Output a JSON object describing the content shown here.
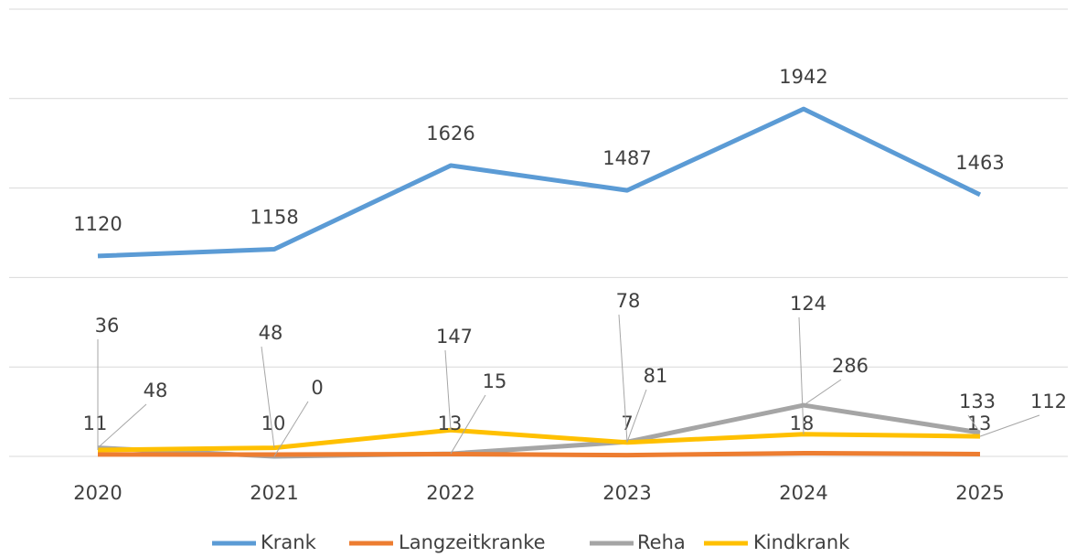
{
  "chart_data": {
    "type": "line",
    "categories": [
      "2020",
      "2021",
      "2022",
      "2023",
      "2024",
      "2025"
    ],
    "series": [
      {
        "name": "Krank",
        "color": "#5b9bd5",
        "values": [
          1120,
          1158,
          1626,
          1487,
          1942,
          1463
        ]
      },
      {
        "name": "Langzeitkranke",
        "color": "#ed7d31",
        "values": [
          11,
          10,
          13,
          7,
          18,
          13
        ]
      },
      {
        "name": "Reha",
        "color": "#a5a5a5",
        "values": [
          48,
          0,
          15,
          81,
          286,
          133
        ]
      },
      {
        "name": "Kindkrank",
        "color": "#ffc000",
        "values": [
          36,
          48,
          147,
          78,
          124,
          112
        ]
      }
    ],
    "ylim": [
      0,
      2500
    ],
    "yticks": [
      0,
      500,
      1000,
      1500,
      2000,
      2500
    ],
    "grid": true,
    "legend": "bottom"
  }
}
